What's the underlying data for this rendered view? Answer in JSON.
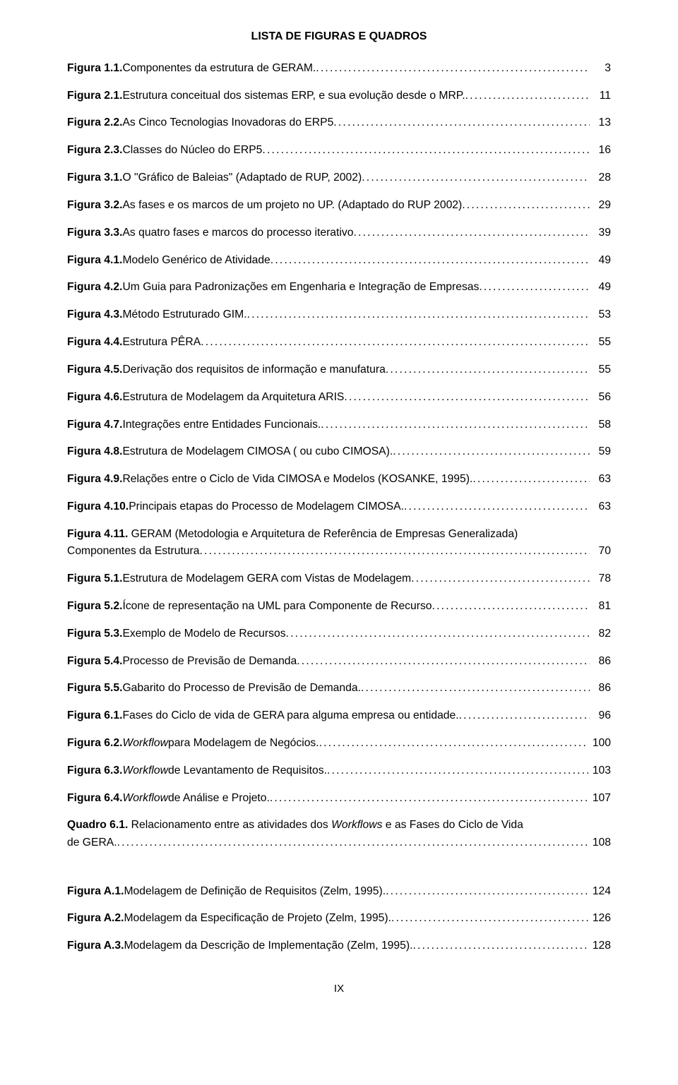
{
  "title": "LISTA DE FIGURAS E QUADROS",
  "entries": [
    {
      "label": "Figura 1.1.",
      "desc": " Componentes da estrutura de GERAM.",
      "page": "3"
    },
    {
      "label": "Figura 2.1.",
      "desc": " Estrutura conceitual dos sistemas ERP, e sua evolução desde o MRP.",
      "page": "11"
    },
    {
      "label": "Figura 2.2.",
      "desc": " As Cinco Tecnologias Inovadoras do ERP5",
      "page": "13"
    },
    {
      "label": "Figura 2.3.",
      "desc": " Classes do Núcleo do ERP5",
      "page": "16"
    },
    {
      "label": "Figura 3.1.",
      "desc": " O \"Gráfico de Baleias\" (Adaptado de RUP, 2002)",
      "page": "28"
    },
    {
      "label": "Figura 3.2.",
      "desc": " As fases e os marcos de um projeto no UP. (Adaptado do RUP 2002)",
      "page": "29"
    },
    {
      "label": "Figura 3.3.",
      "desc": " As quatro fases e marcos do processo iterativo",
      "page": "39"
    },
    {
      "label": "Figura 4.1.",
      "desc": " Modelo Genérico de Atividade",
      "page": "49"
    },
    {
      "label": "Figura 4.2.",
      "desc": " Um Guia para Padronizações em Engenharia e Integração de Empresas",
      "page": "49"
    },
    {
      "label": "Figura 4.3.",
      "desc": " Método Estruturado GIM.",
      "page": "53"
    },
    {
      "label": "Figura 4.4.",
      "desc": " Estrutura PÊRA",
      "page": "55"
    },
    {
      "label": "Figura 4.5.",
      "desc": " Derivação dos requisitos de informação e manufatura",
      "page": "55"
    },
    {
      "label": "Figura 4.6.",
      "desc": " Estrutura de Modelagem da Arquitetura ARIS",
      "page": "56"
    },
    {
      "label": "Figura 4.7.",
      "desc": " Integrações entre Entidades Funcionais.",
      "page": "58"
    },
    {
      "label": "Figura 4.8.",
      "desc": " Estrutura de Modelagem CIMOSA ( ou cubo CIMOSA).",
      "page": "59"
    },
    {
      "label": "Figura 4.9.",
      "desc": " Relações entre o Ciclo de Vida CIMOSA e Modelos (KOSANKE, 1995).",
      "page": "63"
    },
    {
      "label": "Figura 4.10.",
      "desc": " Principais etapas do Processo de Modelagem CIMOSA.",
      "page": "63"
    },
    {
      "label": "Figura 4.11.",
      "wrap": true,
      "line1": " GERAM (Metodologia e Arquitetura de Referência de Empresas Generalizada)",
      "line2": "Componentes da Estrutura",
      "page": "70"
    },
    {
      "label": "Figura 5.1.",
      "desc": " Estrutura de Modelagem GERA com Vistas de Modelagem",
      "page": "78"
    },
    {
      "label": "Figura 5.2.",
      "desc": " Ícone de representação na UML para Componente de Recurso",
      "page": "81"
    },
    {
      "label": "Figura 5.3.",
      "desc": " Exemplo de Modelo de Recursos",
      "page": "82"
    },
    {
      "label": "Figura 5.4.",
      "desc": " Processo de Previsão de Demanda",
      "page": "86"
    },
    {
      "label": "Figura 5.5.",
      "desc": " Gabarito do Processo de Previsão de Demanda.",
      "page": "86"
    },
    {
      "label": "Figura 6.1.",
      "desc": " Fases do Ciclo de vida de GERA para alguma empresa ou entidade.",
      "page": "96"
    },
    {
      "label": "Figura 6.2.",
      "italic_part": "Workflow",
      "desc": " para Modelagem de Negócios.",
      "page": "100"
    },
    {
      "label": "Figura 6.3.",
      "italic_part": "Workflow",
      "desc": " de Levantamento de Requisitos.",
      "page": "103"
    },
    {
      "label": "Figura 6.4.",
      "italic_part": "Workflow",
      "desc": " de Análise e Projeto.",
      "page": "107"
    },
    {
      "label": "Quadro 6.1.",
      "wrap": true,
      "line1_pre": " Relacionamento entre as atividades dos ",
      "line1_italic": "Workflows",
      "line1_post": " e as Fases do Ciclo de Vida",
      "line2": "de GERA.",
      "page": "108"
    }
  ],
  "appendix": [
    {
      "label": "Figura A.1.",
      "desc": " Modelagem de Definição de Requisitos (Zelm, 1995).",
      "page": "124"
    },
    {
      "label": "Figura A.2.",
      "desc": " Modelagem da Especificação de Projeto (Zelm, 1995).",
      "page": "126"
    },
    {
      "label": "Figura A.3.",
      "desc": " Modelagem da Descrição de Implementação (Zelm, 1995).",
      "page": "128"
    }
  ],
  "footer": "IX"
}
